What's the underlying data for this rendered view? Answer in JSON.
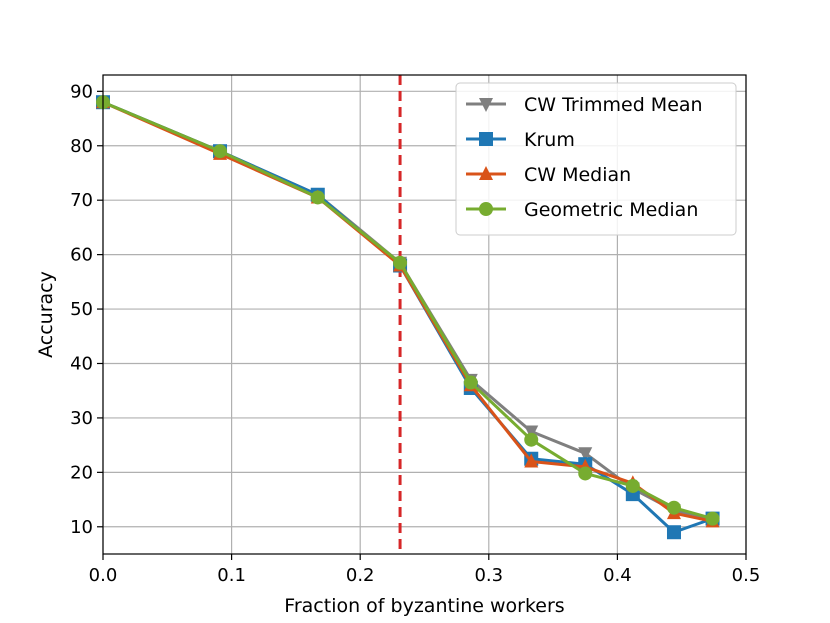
{
  "chart_data": {
    "type": "line",
    "title": "",
    "xlabel": "Fraction of byzantine workers",
    "ylabel": "Accuracy",
    "xlim": [
      0,
      0.5
    ],
    "ylim": [
      5,
      93
    ],
    "xticks": [
      0,
      0.1,
      0.2,
      0.3,
      0.4,
      0.5
    ],
    "xtick_labels": [
      "0.0",
      "0.1",
      "0.2",
      "0.3",
      "0.4",
      "0.5"
    ],
    "yticks": [
      10,
      20,
      30,
      40,
      50,
      60,
      70,
      80,
      90
    ],
    "ytick_labels": [
      "10",
      "20",
      "30",
      "40",
      "50",
      "60",
      "70",
      "80",
      "90"
    ],
    "grid": true,
    "legend_position": "top-right",
    "reference_line": {
      "x": 0.231,
      "color": "#d62728",
      "style": "dashed"
    },
    "series": [
      {
        "name": "CW Trimmed Mean",
        "color": "#7f7f7f",
        "marker": "triangle-down",
        "x": [
          0,
          0.091,
          0.167,
          0.231,
          0.286,
          0.333,
          0.375,
          0.412,
          0.444,
          0.474
        ],
        "y": [
          88,
          79,
          71,
          58.5,
          37,
          27.5,
          23.5,
          17,
          13,
          11.5
        ]
      },
      {
        "name": "Krum",
        "color": "#1f77b4",
        "marker": "square",
        "x": [
          0,
          0.091,
          0.167,
          0.231,
          0.286,
          0.333,
          0.375,
          0.412,
          0.444,
          0.474
        ],
        "y": [
          88,
          79,
          71,
          58,
          35.5,
          22.5,
          21.5,
          16,
          9,
          11.5
        ]
      },
      {
        "name": "CW Median",
        "color": "#d95319",
        "marker": "triangle-up",
        "x": [
          0,
          0.091,
          0.167,
          0.231,
          0.286,
          0.333,
          0.375,
          0.412,
          0.444,
          0.474
        ],
        "y": [
          88,
          78.5,
          70.5,
          58,
          36,
          22,
          21,
          18,
          12.5,
          11
        ]
      },
      {
        "name": "Geometric Median",
        "color": "#77ac30",
        "marker": "circle",
        "x": [
          0,
          0.091,
          0.167,
          0.231,
          0.286,
          0.333,
          0.375,
          0.412,
          0.444,
          0.474
        ],
        "y": [
          88,
          79,
          70.5,
          58.5,
          36.5,
          26,
          19.8,
          17.5,
          13.5,
          11.5
        ]
      }
    ]
  }
}
